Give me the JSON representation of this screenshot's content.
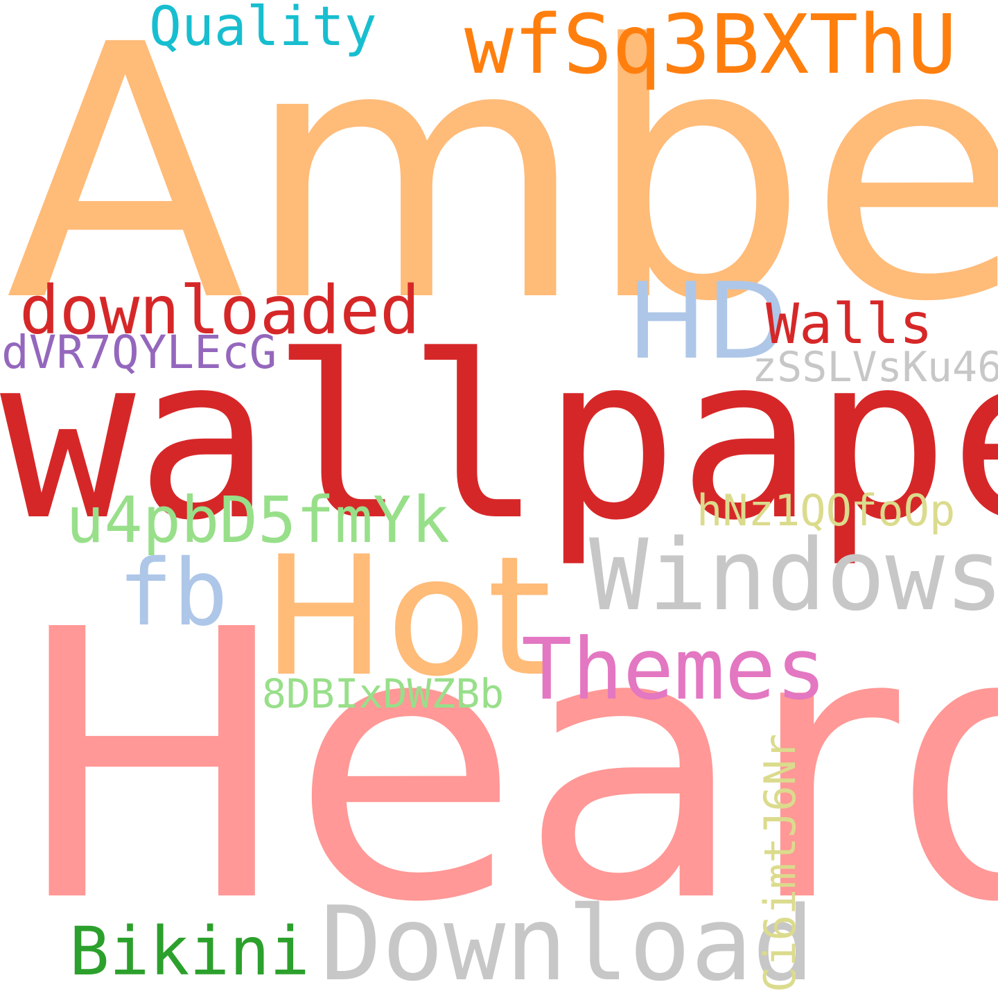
{
  "word_cloud": {
    "background": "#ffffff",
    "words": {
      "amber": {
        "text": "Amber",
        "color": "#ffbb78"
      },
      "heard": {
        "text": "Heard",
        "color": "#ff9896"
      },
      "wallpaper": {
        "text": "wallpaper",
        "color": "#d62728"
      },
      "wfsq": {
        "text": "wfSq3BXThU",
        "color": "#ff7f0e"
      },
      "quality": {
        "text": "Quality",
        "color": "#17becf"
      },
      "downloaded": {
        "text": "downloaded",
        "color": "#d62728"
      },
      "hd": {
        "text": "HD",
        "color": "#aec7e8"
      },
      "walls": {
        "text": "Walls",
        "color": "#d62728"
      },
      "dvr": {
        "text": "dVR7QYLEcG",
        "color": "#9467bd"
      },
      "zssl": {
        "text": "zSSLVsKu46",
        "color": "#c7c7c7"
      },
      "u4pb": {
        "text": "u4pbD5fmYk",
        "color": "#98df8a"
      },
      "hnz": {
        "text": "hNz1QOfoOp",
        "color": "#dbdb8d"
      },
      "fb": {
        "text": "fb",
        "color": "#aec7e8"
      },
      "hot": {
        "text": "Hot",
        "color": "#ffbb78"
      },
      "windows": {
        "text": "Windows",
        "color": "#c7c7c7"
      },
      "themes": {
        "text": "Themes",
        "color": "#e377c2"
      },
      "8dbi": {
        "text": "8DBIxDWZBb",
        "color": "#98df8a"
      },
      "download": {
        "text": "Download",
        "color": "#c7c7c7"
      },
      "bikini": {
        "text": "Bikini",
        "color": "#2ca02c"
      },
      "ci6i": {
        "text": "Ci6imtJ6Nr",
        "color": "#dbdb8d"
      }
    }
  }
}
